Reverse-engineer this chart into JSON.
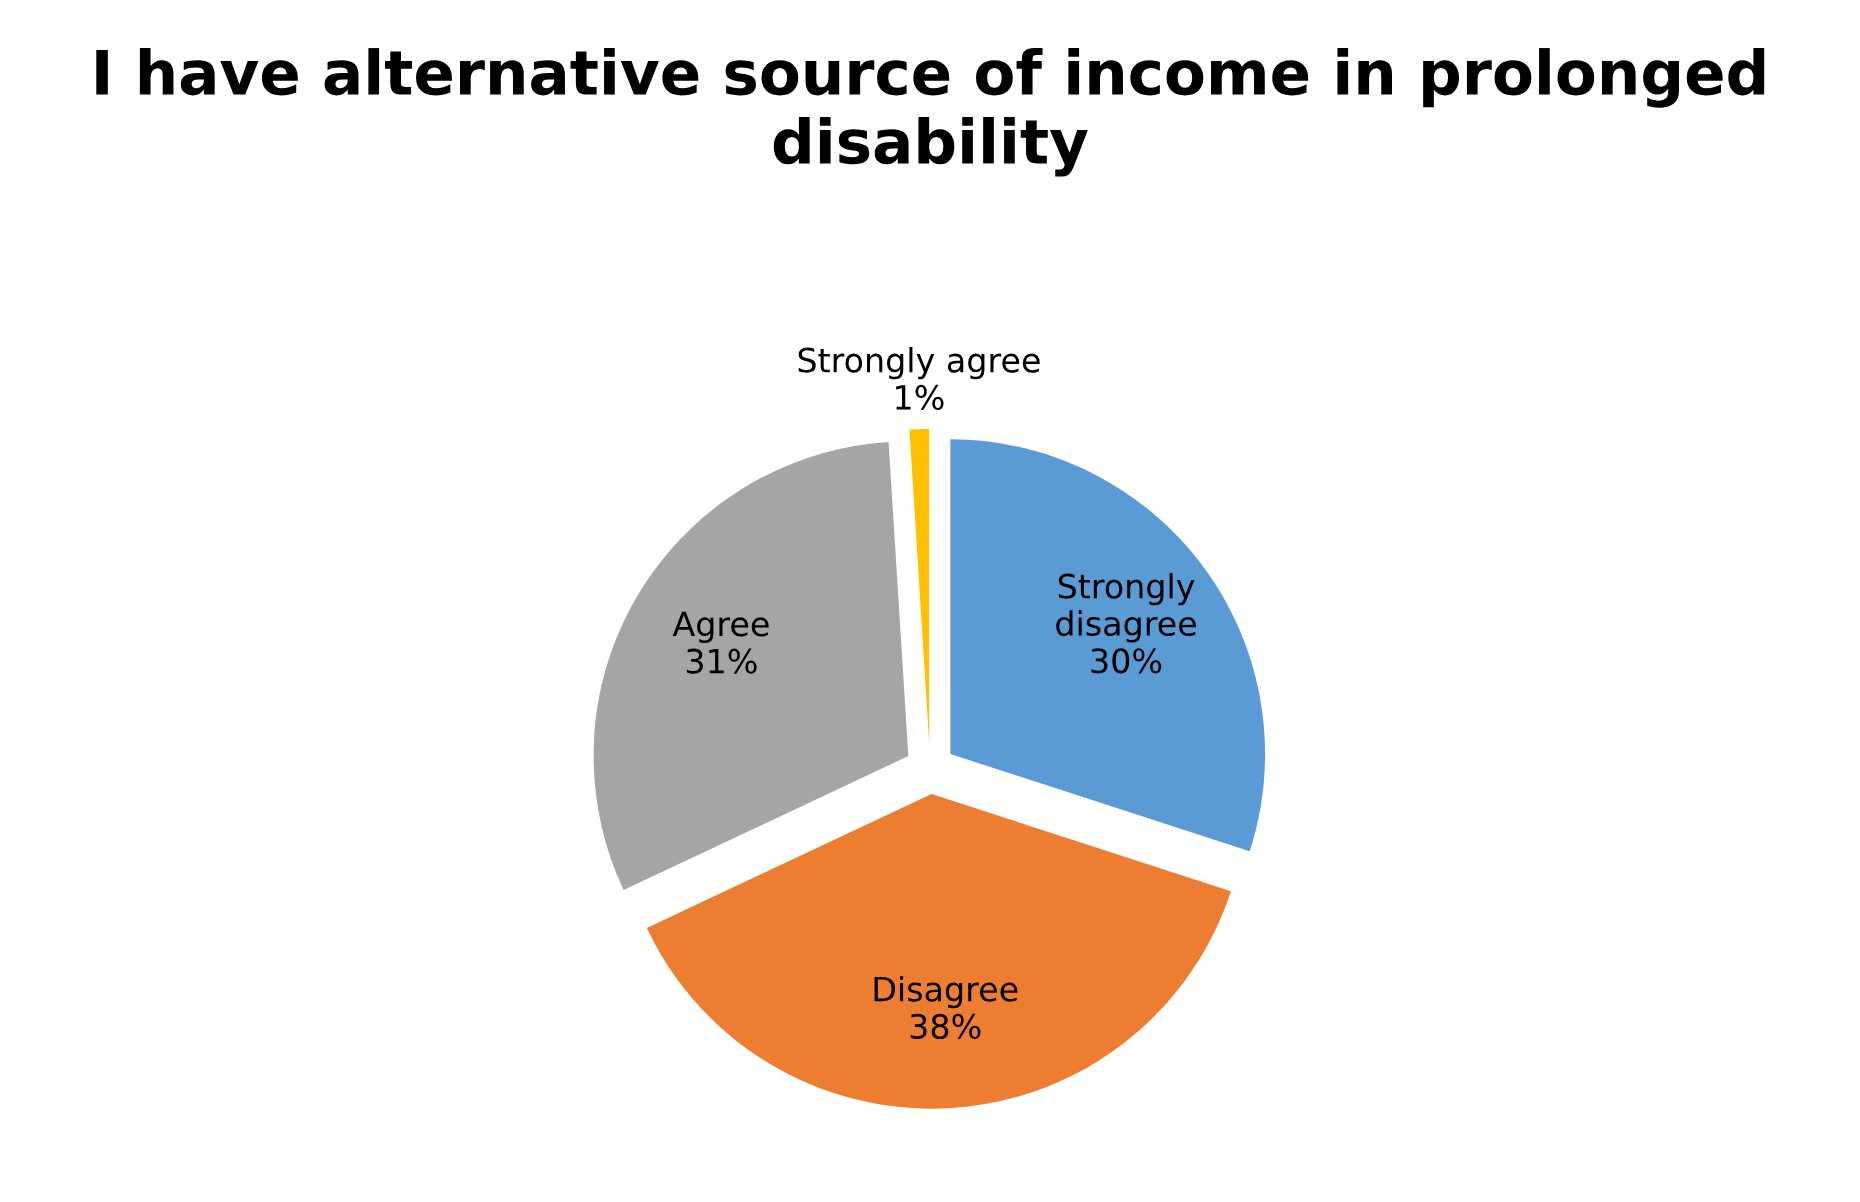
{
  "chart_data": {
    "type": "pie",
    "title": "I have alternative source of income in prolonged disability",
    "categories": [
      "Strongly disagree",
      "Disagree",
      "Agree",
      "Strongly agree"
    ],
    "values": [
      30,
      38,
      31,
      1
    ],
    "value_labels": [
      "30%",
      "38%",
      "31%",
      "1%"
    ],
    "colors": [
      "#5b9bd5",
      "#ed7d31",
      "#a5a5a5",
      "#ffc000"
    ],
    "legend": false
  }
}
